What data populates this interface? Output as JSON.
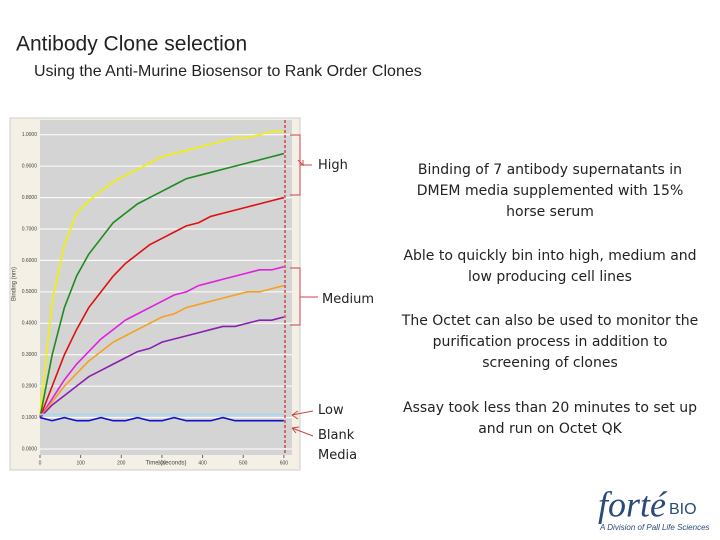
{
  "header": {
    "title": "Antibody Clone selection",
    "subtitle": "Using the Anti-Murine Biosensor to Rank Order Clones"
  },
  "annotations": {
    "high": "High",
    "medium": "Medium",
    "low": "Low",
    "blank": "Blank Media"
  },
  "notes": [
    "Binding of 7 antibody supernatants in DMEM media supplemented with 15% horse serum",
    "Able to quickly bin into high, medium and low producing cell lines",
    "The Octet can also be used to monitor the purification process in addition to screening of clones",
    "Assay took less than 20 minutes to set up and run on Octet QK"
  ],
  "logo": {
    "name": "forté",
    "suffix": "BIO",
    "tagline": "A Division of Pall Life Sciences"
  },
  "chart_data": {
    "type": "line",
    "x_label": "Time (seconds)",
    "y_label": "Binding (nm)",
    "x": [
      0,
      30,
      60,
      90,
      120,
      150,
      180,
      210,
      240,
      270,
      300,
      330,
      360,
      390,
      420,
      450,
      480,
      510,
      540,
      570,
      600
    ],
    "series": [
      {
        "color": "#f2f200",
        "values": [
          0.11,
          0.47,
          0.65,
          0.75,
          0.79,
          0.82,
          0.85,
          0.87,
          0.89,
          0.91,
          0.93,
          0.94,
          0.95,
          0.96,
          0.97,
          0.98,
          0.99,
          0.99,
          1.0,
          1.01,
          1.01
        ]
      },
      {
        "color": "#1f8a1f",
        "values": [
          0.1,
          0.3,
          0.45,
          0.55,
          0.62,
          0.67,
          0.72,
          0.75,
          0.78,
          0.8,
          0.82,
          0.84,
          0.86,
          0.87,
          0.88,
          0.89,
          0.9,
          0.91,
          0.92,
          0.93,
          0.94
        ]
      },
      {
        "color": "#e01010",
        "values": [
          0.1,
          0.2,
          0.3,
          0.38,
          0.45,
          0.5,
          0.55,
          0.59,
          0.62,
          0.65,
          0.67,
          0.69,
          0.71,
          0.72,
          0.74,
          0.75,
          0.76,
          0.77,
          0.78,
          0.79,
          0.8
        ]
      },
      {
        "color": "#e020e0",
        "values": [
          0.1,
          0.16,
          0.22,
          0.27,
          0.31,
          0.35,
          0.38,
          0.41,
          0.43,
          0.45,
          0.47,
          0.49,
          0.5,
          0.52,
          0.53,
          0.54,
          0.55,
          0.56,
          0.57,
          0.57,
          0.58
        ]
      },
      {
        "color": "#f5a020",
        "values": [
          0.1,
          0.15,
          0.2,
          0.24,
          0.28,
          0.31,
          0.34,
          0.36,
          0.38,
          0.4,
          0.42,
          0.43,
          0.45,
          0.46,
          0.47,
          0.48,
          0.49,
          0.5,
          0.5,
          0.51,
          0.52
        ]
      },
      {
        "color": "#8a1fb0",
        "values": [
          0.1,
          0.14,
          0.17,
          0.2,
          0.23,
          0.25,
          0.27,
          0.29,
          0.31,
          0.32,
          0.34,
          0.35,
          0.36,
          0.37,
          0.38,
          0.39,
          0.39,
          0.4,
          0.41,
          0.41,
          0.42
        ]
      },
      {
        "color": "#9fd8f0",
        "values": [
          0.11,
          0.11,
          0.11,
          0.11,
          0.11,
          0.11,
          0.11,
          0.11,
          0.11,
          0.11,
          0.11,
          0.11,
          0.11,
          0.11,
          0.11,
          0.11,
          0.11,
          0.11,
          0.11,
          0.11,
          0.11
        ]
      },
      {
        "color": "#1010c8",
        "values": [
          0.1,
          0.09,
          0.1,
          0.09,
          0.09,
          0.1,
          0.09,
          0.09,
          0.1,
          0.09,
          0.09,
          0.1,
          0.09,
          0.09,
          0.09,
          0.1,
          0.09,
          0.09,
          0.09,
          0.09,
          0.09
        ]
      }
    ],
    "xlim": [
      0,
      620
    ],
    "xticks": [
      0,
      100,
      200,
      300,
      400,
      500,
      600
    ],
    "ylim": [
      0,
      1.05
    ],
    "yticks": [
      {
        "value": 0,
        "label": "0.0000"
      },
      {
        "value": 0.1,
        "label": "0.1000"
      },
      {
        "value": 0.2,
        "label": "0.2000"
      },
      {
        "value": 0.3,
        "label": "0.3000"
      },
      {
        "value": 0.4,
        "label": "0.4000"
      },
      {
        "value": 0.5,
        "label": "0.5000"
      },
      {
        "value": 0.6,
        "label": "0.6000"
      },
      {
        "value": 0.7,
        "label": "0.7000"
      },
      {
        "value": 0.8,
        "label": "0.8000"
      },
      {
        "value": 0.9,
        "label": "0.9000"
      },
      {
        "value": 1.0,
        "label": "1.0000"
      }
    ],
    "grid": true
  }
}
